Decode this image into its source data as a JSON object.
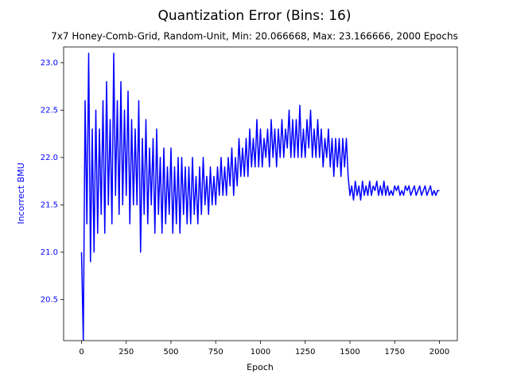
{
  "chart_data": {
    "type": "line",
    "title": "Quantization Error (Bins: 16)",
    "subtitle": "7x7 Honey-Comb-Grid, Random-Unit, Min: 20.066668, Max: 23.166666, 2000 Epochs",
    "x_label": "Epoch",
    "y_label": "Incorrect BMU",
    "xlim": [
      -100,
      2100
    ],
    "ylim": [
      20.066668,
      23.166666
    ],
    "xticks": [
      0,
      250,
      500,
      750,
      1000,
      1250,
      1500,
      1750,
      2000
    ],
    "yticks": [
      20.5,
      {
        "value": 21,
        "label": "21.0"
      },
      21.5,
      {
        "value": 22,
        "label": "22.0"
      },
      22.5,
      {
        "value": 23,
        "label": "23.0"
      }
    ],
    "grid": false,
    "series": [
      {
        "color": "#0000ff",
        "x": [
          0,
          10,
          20,
          30,
          40,
          50,
          60,
          70,
          80,
          90,
          100,
          110,
          120,
          130,
          140,
          150,
          160,
          170,
          180,
          190,
          200,
          210,
          220,
          230,
          240,
          250,
          260,
          270,
          280,
          290,
          300,
          310,
          320,
          330,
          340,
          350,
          360,
          370,
          380,
          390,
          400,
          410,
          420,
          430,
          440,
          450,
          460,
          470,
          480,
          490,
          500,
          510,
          520,
          530,
          540,
          550,
          560,
          570,
          580,
          590,
          600,
          610,
          620,
          630,
          640,
          650,
          660,
          670,
          680,
          690,
          700,
          710,
          720,
          730,
          740,
          750,
          760,
          770,
          780,
          790,
          800,
          810,
          820,
          830,
          840,
          850,
          860,
          870,
          880,
          890,
          900,
          910,
          920,
          930,
          940,
          950,
          960,
          970,
          980,
          990,
          1000,
          1010,
          1020,
          1030,
          1040,
          1050,
          1060,
          1070,
          1080,
          1090,
          1100,
          1110,
          1120,
          1130,
          1140,
          1150,
          1160,
          1170,
          1180,
          1190,
          1200,
          1210,
          1220,
          1230,
          1240,
          1250,
          1260,
          1270,
          1280,
          1290,
          1300,
          1310,
          1320,
          1330,
          1340,
          1350,
          1360,
          1370,
          1380,
          1390,
          1400,
          1410,
          1420,
          1430,
          1440,
          1450,
          1460,
          1470,
          1480,
          1490,
          1500,
          1510,
          1520,
          1530,
          1540,
          1550,
          1560,
          1570,
          1580,
          1590,
          1600,
          1610,
          1620,
          1630,
          1640,
          1650,
          1660,
          1670,
          1680,
          1690,
          1700,
          1710,
          1720,
          1730,
          1740,
          1750,
          1760,
          1770,
          1780,
          1790,
          1800,
          1810,
          1820,
          1830,
          1840,
          1850,
          1860,
          1870,
          1880,
          1890,
          1900,
          1910,
          1920,
          1930,
          1940,
          1950,
          1960,
          1970,
          1980,
          1990,
          2000
        ],
        "values": [
          21.0,
          20.07,
          22.6,
          21.3,
          23.1,
          20.9,
          22.3,
          21.0,
          22.5,
          21.2,
          22.3,
          21.4,
          22.6,
          21.2,
          22.8,
          21.5,
          22.4,
          21.3,
          23.1,
          21.6,
          22.6,
          21.4,
          22.8,
          21.5,
          22.5,
          21.6,
          22.7,
          21.3,
          22.4,
          21.5,
          22.3,
          21.5,
          22.6,
          21.0,
          22.2,
          21.4,
          22.4,
          21.3,
          22.1,
          21.5,
          22.2,
          21.2,
          22.3,
          21.4,
          22.0,
          21.2,
          22.1,
          21.3,
          21.9,
          21.4,
          22.1,
          21.2,
          21.9,
          21.3,
          22.0,
          21.2,
          22.0,
          21.4,
          21.9,
          21.3,
          21.9,
          21.3,
          22.0,
          21.4,
          21.8,
          21.3,
          21.9,
          21.4,
          22.0,
          21.5,
          21.8,
          21.4,
          21.9,
          21.5,
          21.8,
          21.5,
          21.9,
          21.6,
          22.0,
          21.6,
          21.9,
          21.6,
          22.0,
          21.7,
          22.1,
          21.6,
          22.0,
          21.7,
          22.2,
          21.8,
          22.1,
          21.8,
          22.2,
          21.8,
          22.3,
          21.9,
          22.2,
          21.9,
          22.4,
          21.9,
          22.3,
          21.9,
          22.2,
          22.0,
          22.3,
          21.9,
          22.4,
          22.0,
          22.3,
          21.9,
          22.3,
          22.0,
          22.4,
          22.0,
          22.3,
          22.1,
          22.5,
          22.0,
          22.4,
          22.0,
          22.4,
          22.0,
          22.55,
          22.0,
          22.3,
          22.0,
          22.4,
          22.1,
          22.5,
          22.0,
          22.3,
          22.0,
          22.4,
          22.0,
          22.3,
          21.9,
          22.2,
          22.0,
          22.3,
          21.9,
          22.2,
          21.8,
          22.2,
          21.9,
          22.2,
          21.8,
          22.2,
          21.9,
          22.2,
          21.8,
          21.6,
          21.7,
          21.55,
          21.75,
          21.6,
          21.7,
          21.55,
          21.75,
          21.6,
          21.7,
          21.6,
          21.75,
          21.6,
          21.7,
          21.65,
          21.75,
          21.6,
          21.7,
          21.6,
          21.75,
          21.6,
          21.7,
          21.6,
          21.65,
          21.6,
          21.7,
          21.65,
          21.7,
          21.6,
          21.65,
          21.6,
          21.7,
          21.65,
          21.7,
          21.6,
          21.65,
          21.7,
          21.6,
          21.65,
          21.7,
          21.6,
          21.65,
          21.7,
          21.6,
          21.65,
          21.7,
          21.6,
          21.65,
          21.6,
          21.65,
          21.65
        ]
      }
    ]
  }
}
